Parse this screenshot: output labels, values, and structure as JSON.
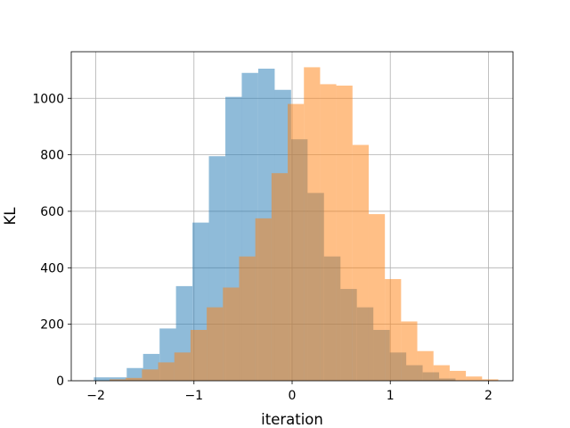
{
  "chart_data": {
    "type": "bar",
    "subtype": "overlapping-histogram",
    "xlabel": "iteration",
    "ylabel": "KL",
    "xlim": [
      -2.25,
      2.25
    ],
    "ylim": [
      0,
      1165
    ],
    "xticks": [
      -2,
      -1,
      0,
      1,
      2
    ],
    "xtick_labels": [
      "−2",
      "−1",
      "0",
      "1",
      "2"
    ],
    "yticks": [
      0,
      200,
      400,
      600,
      800,
      1000
    ],
    "ytick_labels": [
      "0",
      "200",
      "400",
      "600",
      "800",
      "1000"
    ],
    "grid": true,
    "alpha": 0.5,
    "series": [
      {
        "color": "#1f77b4",
        "bin_width": 0.1675,
        "bins": [
          {
            "x0": -2.02,
            "value": 12
          },
          {
            "x0": -1.853,
            "value": 12
          },
          {
            "x0": -1.685,
            "value": 45
          },
          {
            "x0": -1.518,
            "value": 95
          },
          {
            "x0": -1.35,
            "value": 185
          },
          {
            "x0": -1.183,
            "value": 335
          },
          {
            "x0": -1.015,
            "value": 560
          },
          {
            "x0": -0.848,
            "value": 795
          },
          {
            "x0": -0.68,
            "value": 1005
          },
          {
            "x0": -0.513,
            "value": 1090
          },
          {
            "x0": -0.345,
            "value": 1105
          },
          {
            "x0": -0.178,
            "value": 1030
          },
          {
            "x0": -0.01,
            "value": 855
          },
          {
            "x0": 0.157,
            "value": 665
          },
          {
            "x0": 0.325,
            "value": 440
          },
          {
            "x0": 0.492,
            "value": 325
          },
          {
            "x0": 0.66,
            "value": 260
          },
          {
            "x0": 0.827,
            "value": 180
          },
          {
            "x0": 0.995,
            "value": 100
          },
          {
            "x0": 1.162,
            "value": 55
          },
          {
            "x0": 1.33,
            "value": 30
          },
          {
            "x0": 1.497,
            "value": 8
          }
        ]
      },
      {
        "color": "#ff7f0e",
        "bin_width": 0.165,
        "bins": [
          {
            "x0": -1.86,
            "value": 5
          },
          {
            "x0": -1.695,
            "value": 10
          },
          {
            "x0": -1.53,
            "value": 40
          },
          {
            "x0": -1.365,
            "value": 65
          },
          {
            "x0": -1.2,
            "value": 100
          },
          {
            "x0": -1.035,
            "value": 180
          },
          {
            "x0": -0.87,
            "value": 260
          },
          {
            "x0": -0.705,
            "value": 330
          },
          {
            "x0": -0.54,
            "value": 440
          },
          {
            "x0": -0.375,
            "value": 575
          },
          {
            "x0": -0.21,
            "value": 735
          },
          {
            "x0": -0.045,
            "value": 980
          },
          {
            "x0": 0.12,
            "value": 1110
          },
          {
            "x0": 0.285,
            "value": 1050
          },
          {
            "x0": 0.45,
            "value": 1045
          },
          {
            "x0": 0.615,
            "value": 835
          },
          {
            "x0": 0.78,
            "value": 590
          },
          {
            "x0": 0.945,
            "value": 360
          },
          {
            "x0": 1.11,
            "value": 210
          },
          {
            "x0": 1.275,
            "value": 105
          },
          {
            "x0": 1.44,
            "value": 55
          },
          {
            "x0": 1.605,
            "value": 35
          },
          {
            "x0": 1.77,
            "value": 15
          },
          {
            "x0": 1.935,
            "value": 5
          }
        ]
      }
    ]
  }
}
